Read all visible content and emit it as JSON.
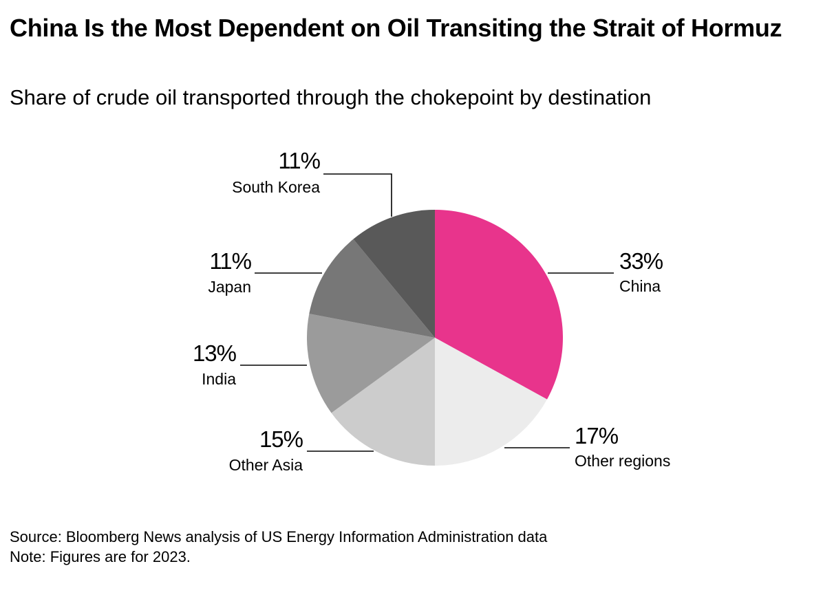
{
  "title": "China Is the Most Dependent on Oil Transiting the Strait of Hormuz",
  "subtitle": "Share of crude oil transported through the chokepoint by destination",
  "source": "Source: Bloomberg News analysis of US Energy Information Administration data",
  "note": "Note: Figures are for 2023.",
  "chart_data": {
    "type": "pie",
    "title": "China Is the Most Dependent on Oil Transiting the Strait of Hormuz",
    "subtitle": "Share of crude oil transported through the chokepoint by destination",
    "unit": "%",
    "slices": [
      {
        "label": "China",
        "value": 33,
        "display": "33%",
        "color": "#e8348c"
      },
      {
        "label": "Other regions",
        "value": 17,
        "display": "17%",
        "color": "#ececec"
      },
      {
        "label": "Other Asia",
        "value": 15,
        "display": "15%",
        "color": "#cccccc"
      },
      {
        "label": "India",
        "value": 13,
        "display": "13%",
        "color": "#9b9b9b"
      },
      {
        "label": "Japan",
        "value": 11,
        "display": "11%",
        "color": "#777777"
      },
      {
        "label": "South Korea",
        "value": 11,
        "display": "11%",
        "color": "#595959"
      }
    ],
    "start_angle": "12 o'clock",
    "direction": "clockwise",
    "legend": "none (direct labels)"
  }
}
